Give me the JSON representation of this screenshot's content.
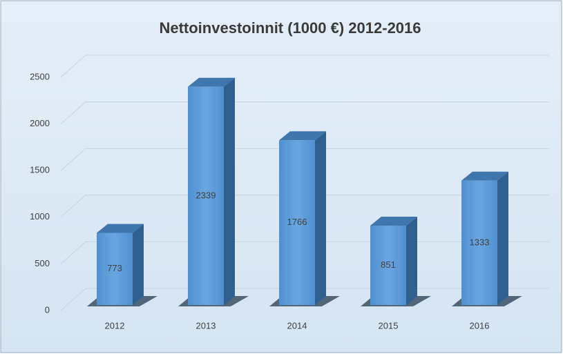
{
  "chart_data": {
    "type": "bar",
    "title": "Nettoinvestoinnit (1000 €) 2012-2016",
    "categories": [
      "2012",
      "2013",
      "2014",
      "2015",
      "2016"
    ],
    "values": [
      773,
      2339,
      1766,
      851,
      1333
    ],
    "color": "#5b9bd5",
    "ylim": [
      0,
      2500
    ],
    "yticks": [
      0,
      500,
      1000,
      1500,
      2000,
      2500
    ],
    "grid": true
  }
}
